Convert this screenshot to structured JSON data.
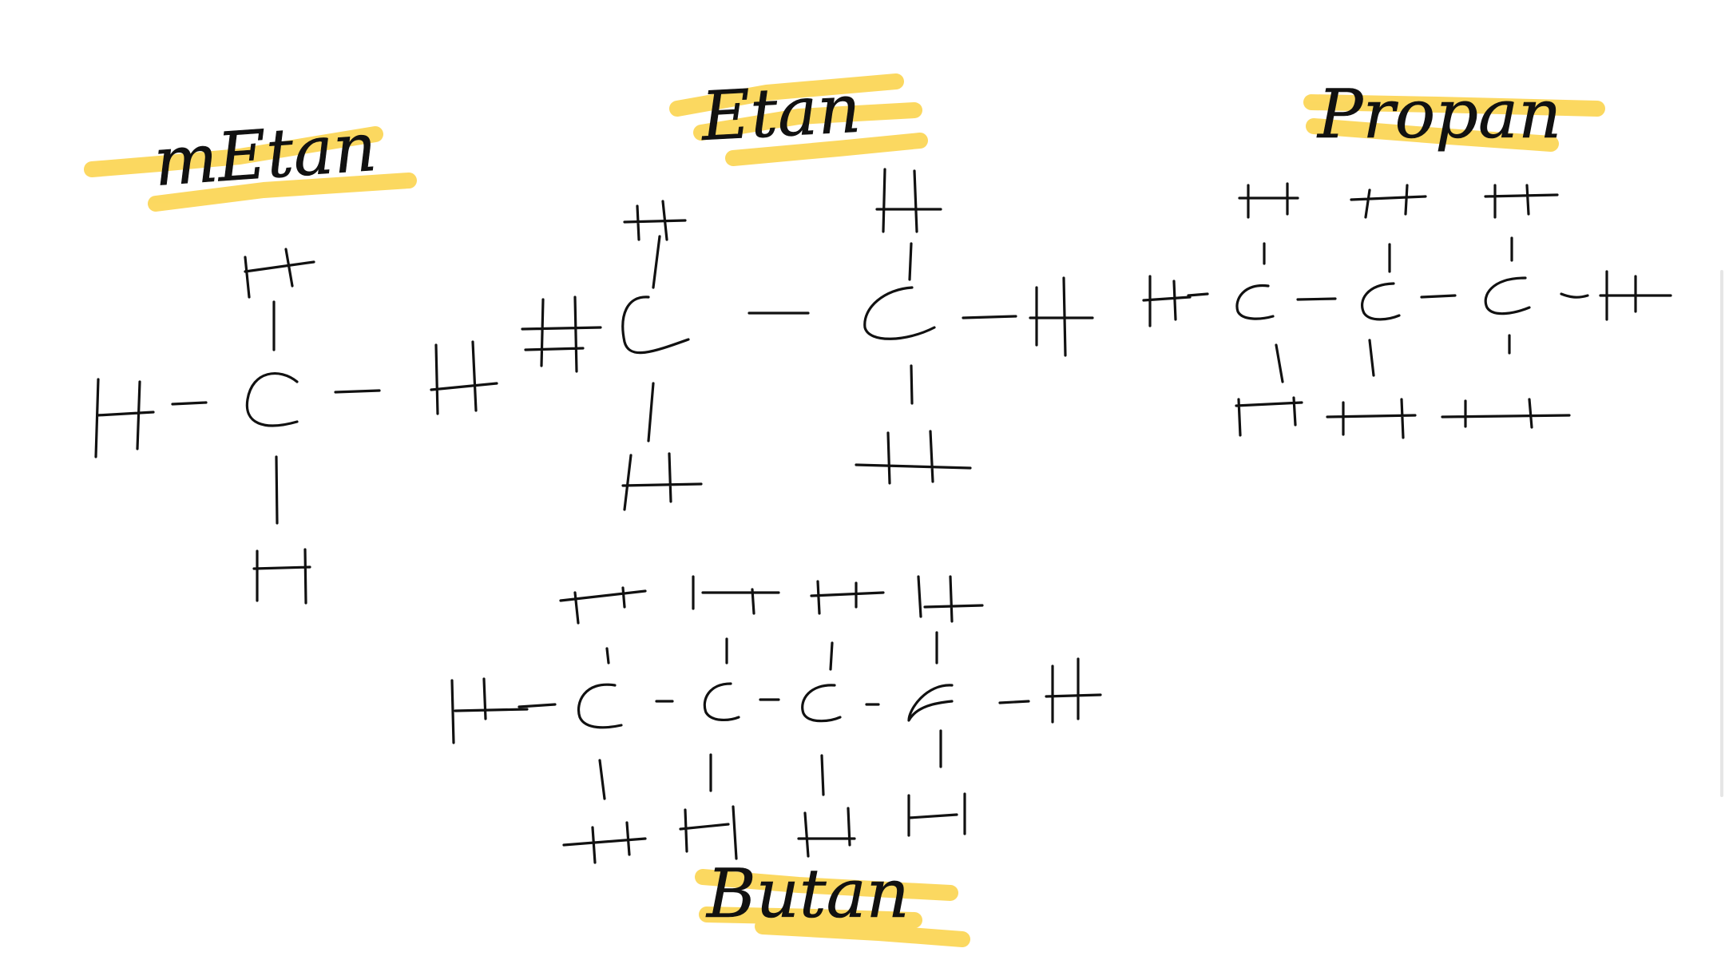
{
  "labels": {
    "metan": "mEtan",
    "etan": "Etan",
    "propan": "Propan",
    "butan": "Butan"
  },
  "colors": {
    "highlight": "#FBD03E",
    "ink": "#111111",
    "background": "#FFFFFF"
  },
  "molecules": [
    {
      "name_key": "metan",
      "carbons": 1,
      "hydrogens": 4
    },
    {
      "name_key": "etan",
      "carbons": 2,
      "hydrogens": 6
    },
    {
      "name_key": "propan",
      "carbons": 3,
      "hydrogens": 8
    },
    {
      "name_key": "butan",
      "carbons": 4,
      "hydrogens": 10
    }
  ]
}
